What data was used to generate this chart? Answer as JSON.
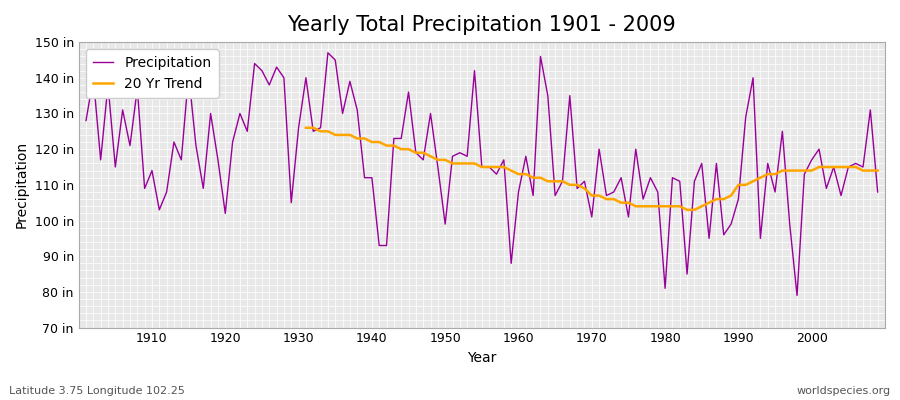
{
  "title": "Yearly Total Precipitation 1901 - 2009",
  "xlabel": "Year",
  "ylabel": "Precipitation",
  "subtitle": "Latitude 3.75 Longitude 102.25",
  "watermark": "worldspecies.org",
  "ylim": [
    70,
    150
  ],
  "yticks": [
    70,
    80,
    90,
    100,
    110,
    120,
    130,
    140,
    150
  ],
  "ytick_labels": [
    "70 in",
    "80 in",
    "90 in",
    "100 in",
    "110 in",
    "120 in",
    "130 in",
    "140 in",
    "150 in"
  ],
  "years": [
    1901,
    1902,
    1903,
    1904,
    1905,
    1906,
    1907,
    1908,
    1909,
    1910,
    1911,
    1912,
    1913,
    1914,
    1915,
    1916,
    1917,
    1918,
    1919,
    1920,
    1921,
    1922,
    1923,
    1924,
    1925,
    1926,
    1927,
    1928,
    1929,
    1930,
    1931,
    1932,
    1933,
    1934,
    1935,
    1936,
    1937,
    1938,
    1939,
    1940,
    1941,
    1942,
    1943,
    1944,
    1945,
    1946,
    1947,
    1948,
    1949,
    1950,
    1951,
    1952,
    1953,
    1954,
    1955,
    1956,
    1957,
    1958,
    1959,
    1960,
    1961,
    1962,
    1963,
    1964,
    1965,
    1966,
    1967,
    1968,
    1969,
    1970,
    1971,
    1972,
    1973,
    1974,
    1975,
    1976,
    1977,
    1978,
    1979,
    1980,
    1981,
    1982,
    1983,
    1984,
    1985,
    1986,
    1987,
    1988,
    1989,
    1990,
    1991,
    1992,
    1993,
    1994,
    1995,
    1996,
    1997,
    1998,
    1999,
    2000,
    2001,
    2002,
    2003,
    2004,
    2005,
    2006,
    2007,
    2008,
    2009
  ],
  "precip": [
    128,
    140,
    117,
    138,
    115,
    131,
    121,
    137,
    109,
    114,
    103,
    108,
    122,
    117,
    141,
    121,
    109,
    130,
    117,
    102,
    122,
    130,
    125,
    144,
    142,
    138,
    143,
    140,
    105,
    126,
    140,
    125,
    126,
    147,
    145,
    130,
    139,
    131,
    112,
    112,
    93,
    93,
    123,
    123,
    136,
    119,
    117,
    130,
    115,
    99,
    118,
    119,
    118,
    142,
    115,
    115,
    113,
    117,
    88,
    108,
    118,
    107,
    146,
    135,
    107,
    111,
    135,
    109,
    111,
    101,
    120,
    107,
    108,
    112,
    101,
    120,
    106,
    112,
    108,
    81,
    112,
    111,
    85,
    111,
    116,
    95,
    116,
    96,
    99,
    106,
    129,
    140,
    95,
    116,
    108,
    125,
    99,
    79,
    113,
    117,
    120,
    109,
    115,
    107,
    115,
    116,
    115,
    131,
    108
  ],
  "trend": [
    null,
    null,
    null,
    null,
    null,
    null,
    null,
    null,
    null,
    null,
    null,
    null,
    null,
    null,
    null,
    null,
    null,
    null,
    null,
    null,
    null,
    null,
    null,
    null,
    null,
    null,
    null,
    null,
    null,
    null,
    126,
    126,
    125,
    125,
    124,
    124,
    124,
    123,
    123,
    122,
    122,
    121,
    121,
    120,
    120,
    119,
    119,
    118,
    117,
    117,
    116,
    116,
    116,
    116,
    115,
    115,
    115,
    115,
    114,
    113,
    113,
    112,
    112,
    111,
    111,
    111,
    110,
    110,
    109,
    107,
    107,
    106,
    106,
    105,
    105,
    104,
    104,
    104,
    104,
    104,
    104,
    104,
    103,
    103,
    104,
    105,
    106,
    106,
    107,
    110,
    110,
    111,
    112,
    113,
    113,
    114,
    114,
    114,
    114,
    114,
    115,
    115,
    115,
    115,
    115,
    115,
    114,
    114,
    114
  ],
  "precip_color": "#990099",
  "trend_color": "#FFA500",
  "bg_color": "#FFFFFF",
  "plot_bg_color": "#E8E8E8",
  "grid_color": "#FFFFFF",
  "title_fontsize": 15,
  "label_fontsize": 10,
  "tick_fontsize": 9,
  "xticks": [
    1910,
    1920,
    1930,
    1940,
    1950,
    1960,
    1970,
    1980,
    1990,
    2000
  ]
}
